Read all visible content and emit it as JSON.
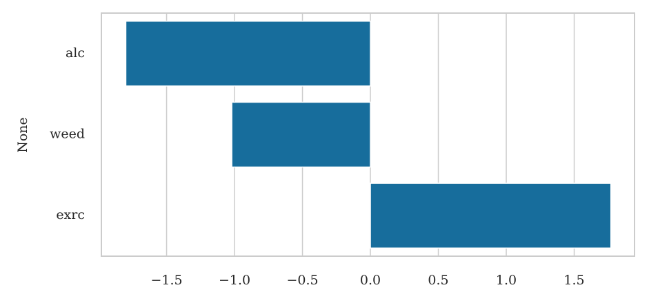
{
  "chart_data": {
    "type": "barh",
    "ylabel": "None",
    "categories": [
      "alc",
      "weed",
      "exrc"
    ],
    "values": [
      -1.8,
      -1.02,
      1.77
    ],
    "color": "#176d9c",
    "xlim": [
      -1.98,
      1.944
    ],
    "xticks": [
      {
        "value": -1.5,
        "label": "−1.5"
      },
      {
        "value": -1.0,
        "label": "−1.0"
      },
      {
        "value": -0.5,
        "label": "−0.5"
      },
      {
        "value": 0.0,
        "label": "0.0"
      },
      0.5,
      {
        "value": 1.0,
        "label": "1.0"
      },
      1.5
    ],
    "grid": true
  }
}
